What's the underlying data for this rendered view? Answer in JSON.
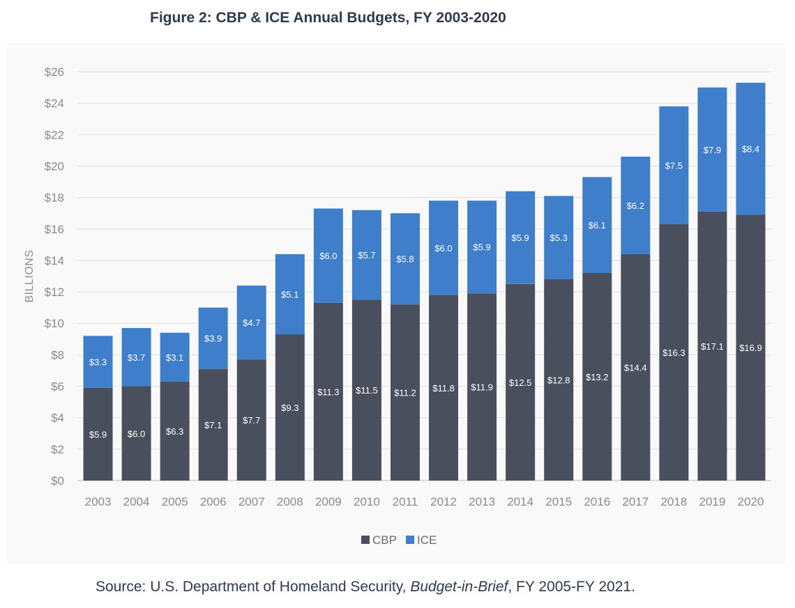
{
  "figure": {
    "title": "Figure 2: CBP & ICE Annual Budgets, FY 2003-2020",
    "source_prefix": "Source: U.S. Department of Homeland Security, ",
    "source_italic": "Budget-in-Brief",
    "source_suffix": ", FY 2005-FY 2021."
  },
  "chart_data": {
    "type": "bar",
    "stacked": true,
    "title": "",
    "xlabel": "",
    "ylabel": "BILLIONS",
    "ylim": [
      0,
      26
    ],
    "y_ticks": [
      0,
      2,
      4,
      6,
      8,
      10,
      12,
      14,
      16,
      18,
      20,
      22,
      24,
      26
    ],
    "y_tick_labels": [
      "$0",
      "$2",
      "$4",
      "$6",
      "$8",
      "$10",
      "$12",
      "$14",
      "$16",
      "$18",
      "$20",
      "$22",
      "$24",
      "$26"
    ],
    "grid": "horizontal",
    "legend_position": "bottom-center",
    "categories": [
      "2003",
      "2004",
      "2005",
      "2006",
      "2007",
      "2008",
      "2009",
      "2010",
      "2011",
      "2012",
      "2013",
      "2014",
      "2015",
      "2016",
      "2017",
      "2018",
      "2019",
      "2020"
    ],
    "series": [
      {
        "name": "CBP",
        "color": "#4a4f5e",
        "values": [
          5.9,
          6.0,
          6.3,
          7.1,
          7.7,
          9.3,
          11.3,
          11.5,
          11.2,
          11.8,
          11.9,
          12.5,
          12.8,
          13.2,
          14.4,
          16.3,
          17.1,
          16.9
        ],
        "labels": [
          "$5.9",
          "$6.0",
          "$6.3",
          "$7.1",
          "$7.7",
          "$9.3",
          "$11.3",
          "$11.5",
          "$11.2",
          "$11.8",
          "$11.9",
          "$12.5",
          "$12.8",
          "$13.2",
          "$14.4",
          "$16.3",
          "$17.1",
          "$16.9"
        ]
      },
      {
        "name": "ICE",
        "color": "#3f7ecb",
        "values": [
          3.3,
          3.7,
          3.1,
          3.9,
          4.7,
          5.1,
          6.0,
          5.7,
          5.8,
          6.0,
          5.9,
          5.9,
          5.3,
          6.1,
          6.2,
          7.5,
          7.9,
          8.4
        ],
        "labels": [
          "$3.3",
          "$3.7",
          "$3.1",
          "$3.9",
          "$4.7",
          "$5.1",
          "$6.0",
          "$5.7",
          "$5.8",
          "$6.0",
          "$5.9",
          "$5.9",
          "$5.3",
          "$6.1",
          "$6.2",
          "$7.5",
          "$7.9",
          "$8.4"
        ]
      }
    ],
    "colors": {
      "grid": "#e4e4e4",
      "axis_text": "#8a8a8a",
      "bar_label": "#ffffff"
    }
  }
}
